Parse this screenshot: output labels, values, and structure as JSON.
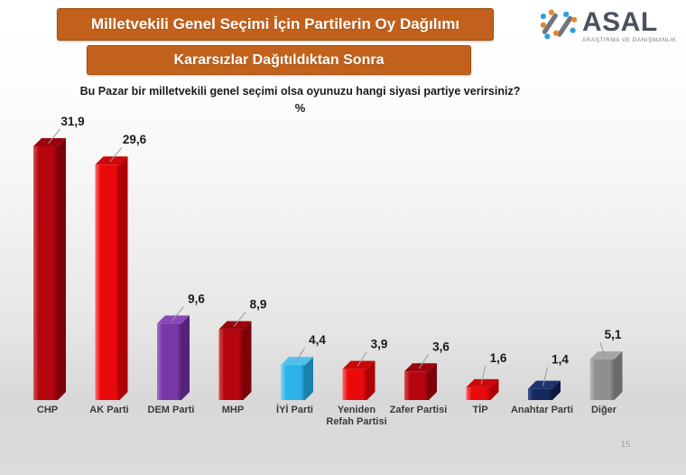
{
  "slide": {
    "title_banner": "Milletvekili Genel Seçimi İçin Partilerin Oy Dağılımı",
    "subtitle_banner": "Kararsızlar Dağıtıldıktan Sonra",
    "banner_color": "#C2611B",
    "question": "Bu Pazar bir milletvekili genel seçimi olsa oyunuzu hangi siyasi partiye verirsiniz?",
    "unit_label": "%",
    "page_number": "15"
  },
  "logo": {
    "name": "ASAL",
    "tagline": "ARAŞTIRMA VE DANIŞMANLIK",
    "icon_colors": {
      "blue": "#2F9FD8",
      "orange": "#E8862B",
      "gray": "#71757B"
    }
  },
  "chart_data": {
    "type": "bar",
    "style": "3d-column",
    "title": "Bu Pazar bir milletvekili genel seçimi olsa oyunuzu hangi siyasi partiye verirsiniz?",
    "unit": "%",
    "ylim": [
      0,
      33
    ],
    "gridlines": false,
    "legend": "none",
    "decimal_separator": ",",
    "categories": [
      "CHP",
      "AK Parti",
      "DEM Parti",
      "MHP",
      "İYİ Parti",
      "Yeniden Refah Partisi",
      "Zafer Partisi",
      "TİP",
      "Anahtar Parti",
      "Diğer"
    ],
    "category_lines": [
      [
        "CHP"
      ],
      [
        "AK Parti"
      ],
      [
        "DEM Parti"
      ],
      [
        "MHP"
      ],
      [
        "İYİ Parti"
      ],
      [
        "Yeniden",
        "Refah Partisi"
      ],
      [
        "Zafer Partisi"
      ],
      [
        "TİP"
      ],
      [
        "Anahtar Parti"
      ],
      [
        "Diğer"
      ]
    ],
    "values": [
      31.9,
      29.6,
      9.6,
      8.9,
      4.4,
      3.9,
      3.6,
      1.6,
      1.4,
      5.1
    ],
    "value_labels": [
      "31,9",
      "29,6",
      "9,6",
      "8,9",
      "4,4",
      "3,9",
      "3,6",
      "1,6",
      "1,4",
      "5,1"
    ],
    "color_keys": [
      "dark_red",
      "bright_red",
      "purple",
      "dark_red",
      "light_blue",
      "bright_red",
      "dark_red",
      "bright_red",
      "navy",
      "gray"
    ],
    "palette": {
      "dark_red": {
        "front": "#B5060F",
        "hi": "#D95050",
        "side": "#7C0309",
        "top": "#9A050D"
      },
      "bright_red": {
        "front": "#EA0A0C",
        "hi": "#FF6B6B",
        "side": "#AE0305",
        "top": "#CC070A"
      },
      "purple": {
        "front": "#7737A6",
        "hi": "#A472C8",
        "side": "#542277",
        "top": "#8A49B8"
      },
      "light_blue": {
        "front": "#2CB3E8",
        "hi": "#85D6F5",
        "side": "#1B80AC",
        "top": "#4FC2EE"
      },
      "navy": {
        "front": "#16295F",
        "hi": "#3D5390",
        "side": "#0C1A42",
        "top": "#1E3370"
      },
      "gray": {
        "front": "#8F8F8F",
        "hi": "#BDBDBD",
        "side": "#6A6A6A",
        "top": "#A6A6A6"
      }
    }
  }
}
